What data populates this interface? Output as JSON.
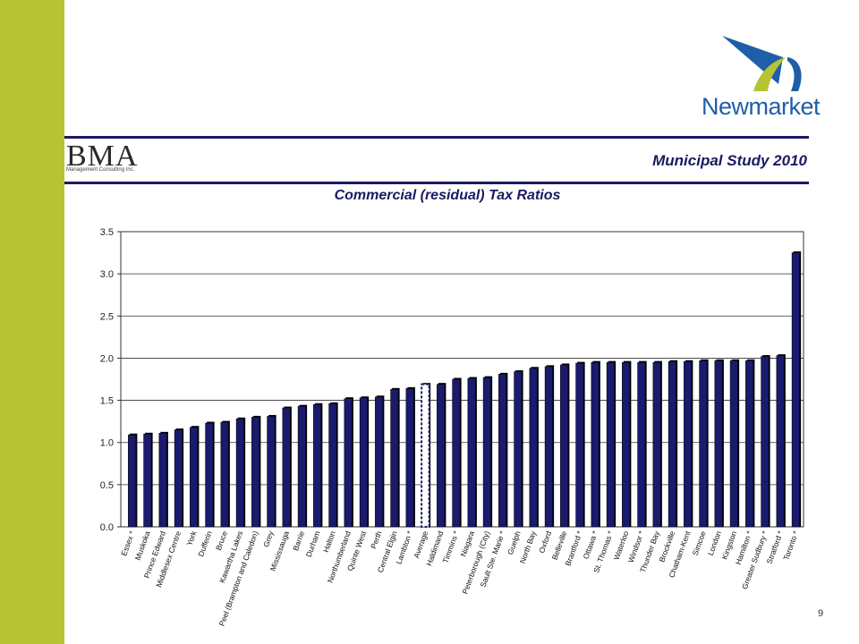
{
  "brand": {
    "name": "Newmarket",
    "colors": {
      "green": "#b5c334",
      "blue": "#1f5fa8",
      "navy": "#1a1a60"
    }
  },
  "header": {
    "bma_logo": "BMA",
    "bma_subtitle": "Management Consulting Inc.",
    "study_title": "Municipal Study 2010"
  },
  "page_number": "9",
  "chart_data": {
    "type": "bar",
    "title": "Commercial (residual) Tax Ratios",
    "xlabel": "",
    "ylabel": "",
    "ylim": [
      0,
      3.5
    ],
    "yticks": [
      "0.0",
      "0.5",
      "1.0",
      "1.5",
      "2.0",
      "2.5",
      "3.0",
      "3.5"
    ],
    "grid": true,
    "bar_color": "#1a1a6e",
    "categories": [
      "Essex *",
      "Muskoka",
      "Prince Edward",
      "Middlesex Centre",
      "York",
      "Dufferin",
      "Bruce",
      "Kawartha Lakes",
      "Peel (Brampton and Caledon)",
      "Grey",
      "Mississauga",
      "Barrie",
      "Durham",
      "Halton",
      "Northumberland",
      "Quinte West",
      "Perth",
      "Central Elgin",
      "Lambton *",
      "Average",
      "Haldimand",
      "Timmins *",
      "Niagara",
      "Peterborough (City)",
      "Sault Ste. Marie *",
      "Guelph",
      "North Bay",
      "Oxford",
      "Belleville",
      "Brantford *",
      "Ottawa *",
      "St. Thomas *",
      "Waterloo",
      "Windsor *",
      "Thunder Bay",
      "Brockville",
      "Chatham-Kent",
      "Simcoe",
      "London",
      "Kingston",
      "Hamilton *",
      "Greater Sudbury *",
      "Stratford *",
      "Toronto *"
    ],
    "values": [
      1.09,
      1.1,
      1.11,
      1.15,
      1.18,
      1.23,
      1.24,
      1.28,
      1.3,
      1.31,
      1.41,
      1.43,
      1.45,
      1.46,
      1.52,
      1.53,
      1.54,
      1.63,
      1.64,
      1.69,
      1.69,
      1.75,
      1.76,
      1.77,
      1.81,
      1.84,
      1.88,
      1.9,
      1.92,
      1.94,
      1.95,
      1.95,
      1.95,
      1.95,
      1.95,
      1.96,
      1.96,
      1.97,
      1.97,
      1.97,
      1.97,
      2.02,
      2.03,
      3.25
    ],
    "highlight_category": "Average"
  }
}
